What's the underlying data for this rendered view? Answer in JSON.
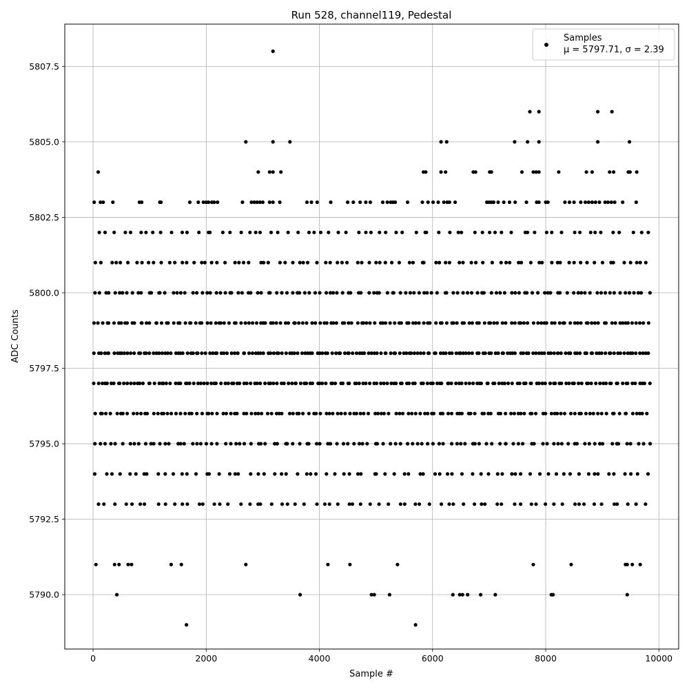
{
  "chart_data": {
    "type": "scatter",
    "title": "Run 528, channel119, Pedestal",
    "xlabel": "Sample #",
    "ylabel": "ADC Counts",
    "xlim": [
      -500,
      10350
    ],
    "ylim": [
      5788.2,
      5808.9
    ],
    "xticks": [
      0,
      2000,
      4000,
      6000,
      8000,
      10000
    ],
    "xtick_labels": [
      "0",
      "2000",
      "4000",
      "6000",
      "8000",
      "10000"
    ],
    "yticks": [
      5790.0,
      5792.5,
      5795.0,
      5797.5,
      5800.0,
      5802.5,
      5805.0,
      5807.5
    ],
    "ytick_labels": [
      "5790.0",
      "5792.5",
      "5795.0",
      "5797.5",
      "5800.0",
      "5802.5",
      "5805.0",
      "5807.5"
    ],
    "grid": true,
    "legend": {
      "location": "top-right",
      "line1": "Samples",
      "line2": "μ = 5797.71, σ = 2.39"
    },
    "marker_color": "#000000",
    "series": [
      {
        "name": "Samples",
        "approximate_samples": 9850,
        "mean": 5797.71,
        "sigma": 2.39,
        "dense_levels": [
          5793,
          5794,
          5795,
          5796,
          5797,
          5798,
          5799,
          5800,
          5801,
          5802
        ],
        "points": [
          [
            3180,
            5808
          ],
          [
            2700,
            5805
          ],
          [
            3180,
            5805
          ],
          [
            3480,
            5805
          ],
          [
            6150,
            5805
          ],
          [
            6250,
            5805
          ],
          [
            7450,
            5805
          ],
          [
            7680,
            5805
          ],
          [
            7880,
            5805
          ],
          [
            8920,
            5805
          ],
          [
            9480,
            5805
          ],
          [
            7720,
            5806
          ],
          [
            7880,
            5806
          ],
          [
            8920,
            5806
          ],
          [
            9170,
            5806
          ],
          [
            90,
            5804
          ],
          [
            2920,
            5804
          ],
          [
            3120,
            5804
          ],
          [
            3180,
            5804
          ],
          [
            3320,
            5804
          ],
          [
            5840,
            5804
          ],
          [
            5880,
            5804
          ],
          [
            6150,
            5804
          ],
          [
            6230,
            5804
          ],
          [
            6720,
            5804
          ],
          [
            6760,
            5804
          ],
          [
            7010,
            5804
          ],
          [
            7040,
            5804
          ],
          [
            7580,
            5804
          ],
          [
            7780,
            5804
          ],
          [
            7830,
            5804
          ],
          [
            7880,
            5804
          ],
          [
            8230,
            5804
          ],
          [
            8720,
            5804
          ],
          [
            8820,
            5804
          ],
          [
            9130,
            5804
          ],
          [
            9200,
            5804
          ],
          [
            9460,
            5804
          ],
          [
            9490,
            5804
          ],
          [
            9610,
            5804
          ],
          [
            20,
            5803
          ],
          [
            130,
            5803
          ],
          [
            180,
            5803
          ],
          [
            350,
            5803
          ],
          [
            820,
            5803
          ],
          [
            860,
            5803
          ],
          [
            1180,
            5803
          ],
          [
            1200,
            5803
          ],
          [
            1710,
            5803
          ],
          [
            1860,
            5803
          ],
          [
            1950,
            5803
          ],
          [
            2000,
            5803
          ],
          [
            2040,
            5803
          ],
          [
            2100,
            5803
          ],
          [
            2140,
            5803
          ],
          [
            2200,
            5803
          ],
          [
            2640,
            5803
          ],
          [
            2800,
            5803
          ],
          [
            2850,
            5803
          ],
          [
            2900,
            5803
          ],
          [
            2950,
            5803
          ],
          [
            3000,
            5803
          ],
          [
            3120,
            5803
          ],
          [
            3180,
            5803
          ],
          [
            3300,
            5803
          ],
          [
            3780,
            5803
          ],
          [
            3860,
            5803
          ],
          [
            3960,
            5803
          ],
          [
            4200,
            5803
          ],
          [
            4500,
            5803
          ],
          [
            4600,
            5803
          ],
          [
            4720,
            5803
          ],
          [
            4820,
            5803
          ],
          [
            4900,
            5803
          ],
          [
            5120,
            5803
          ],
          [
            5200,
            5803
          ],
          [
            5260,
            5803
          ],
          [
            5300,
            5803
          ],
          [
            5340,
            5803
          ],
          [
            5560,
            5803
          ],
          [
            5820,
            5803
          ],
          [
            5920,
            5803
          ],
          [
            6010,
            5803
          ],
          [
            6100,
            5803
          ],
          [
            6200,
            5803
          ],
          [
            6260,
            5803
          ],
          [
            6300,
            5803
          ],
          [
            6400,
            5803
          ],
          [
            6960,
            5803
          ],
          [
            7000,
            5803
          ],
          [
            7040,
            5803
          ],
          [
            7080,
            5803
          ],
          [
            7160,
            5803
          ],
          [
            7260,
            5803
          ],
          [
            7360,
            5803
          ],
          [
            7460,
            5803
          ],
          [
            7660,
            5803
          ],
          [
            7840,
            5803
          ],
          [
            7880,
            5803
          ],
          [
            8000,
            5803
          ],
          [
            8040,
            5803
          ],
          [
            8340,
            5803
          ],
          [
            8420,
            5803
          ],
          [
            8500,
            5803
          ],
          [
            8620,
            5803
          ],
          [
            8700,
            5803
          ],
          [
            8760,
            5803
          ],
          [
            8820,
            5803
          ],
          [
            8880,
            5803
          ],
          [
            8950,
            5803
          ],
          [
            9050,
            5803
          ],
          [
            9100,
            5803
          ],
          [
            9160,
            5803
          ],
          [
            9220,
            5803
          ],
          [
            9360,
            5803
          ],
          [
            9600,
            5803
          ],
          [
            50,
            5791
          ],
          [
            380,
            5791
          ],
          [
            460,
            5791
          ],
          [
            620,
            5791
          ],
          [
            680,
            5791
          ],
          [
            1380,
            5791
          ],
          [
            1560,
            5791
          ],
          [
            2700,
            5791
          ],
          [
            4150,
            5791
          ],
          [
            4540,
            5791
          ],
          [
            5380,
            5791
          ],
          [
            7780,
            5791
          ],
          [
            8450,
            5791
          ],
          [
            9410,
            5791
          ],
          [
            9440,
            5791
          ],
          [
            9530,
            5791
          ],
          [
            9670,
            5791
          ],
          [
            420,
            5790
          ],
          [
            3660,
            5790
          ],
          [
            4920,
            5790
          ],
          [
            4970,
            5790
          ],
          [
            5240,
            5790
          ],
          [
            6360,
            5790
          ],
          [
            6480,
            5790
          ],
          [
            6530,
            5790
          ],
          [
            6620,
            5790
          ],
          [
            6850,
            5790
          ],
          [
            7110,
            5790
          ],
          [
            8100,
            5790
          ],
          [
            8130,
            5790
          ],
          [
            9440,
            5790
          ],
          [
            1650,
            5789
          ],
          [
            5700,
            5789
          ]
        ]
      }
    ]
  }
}
